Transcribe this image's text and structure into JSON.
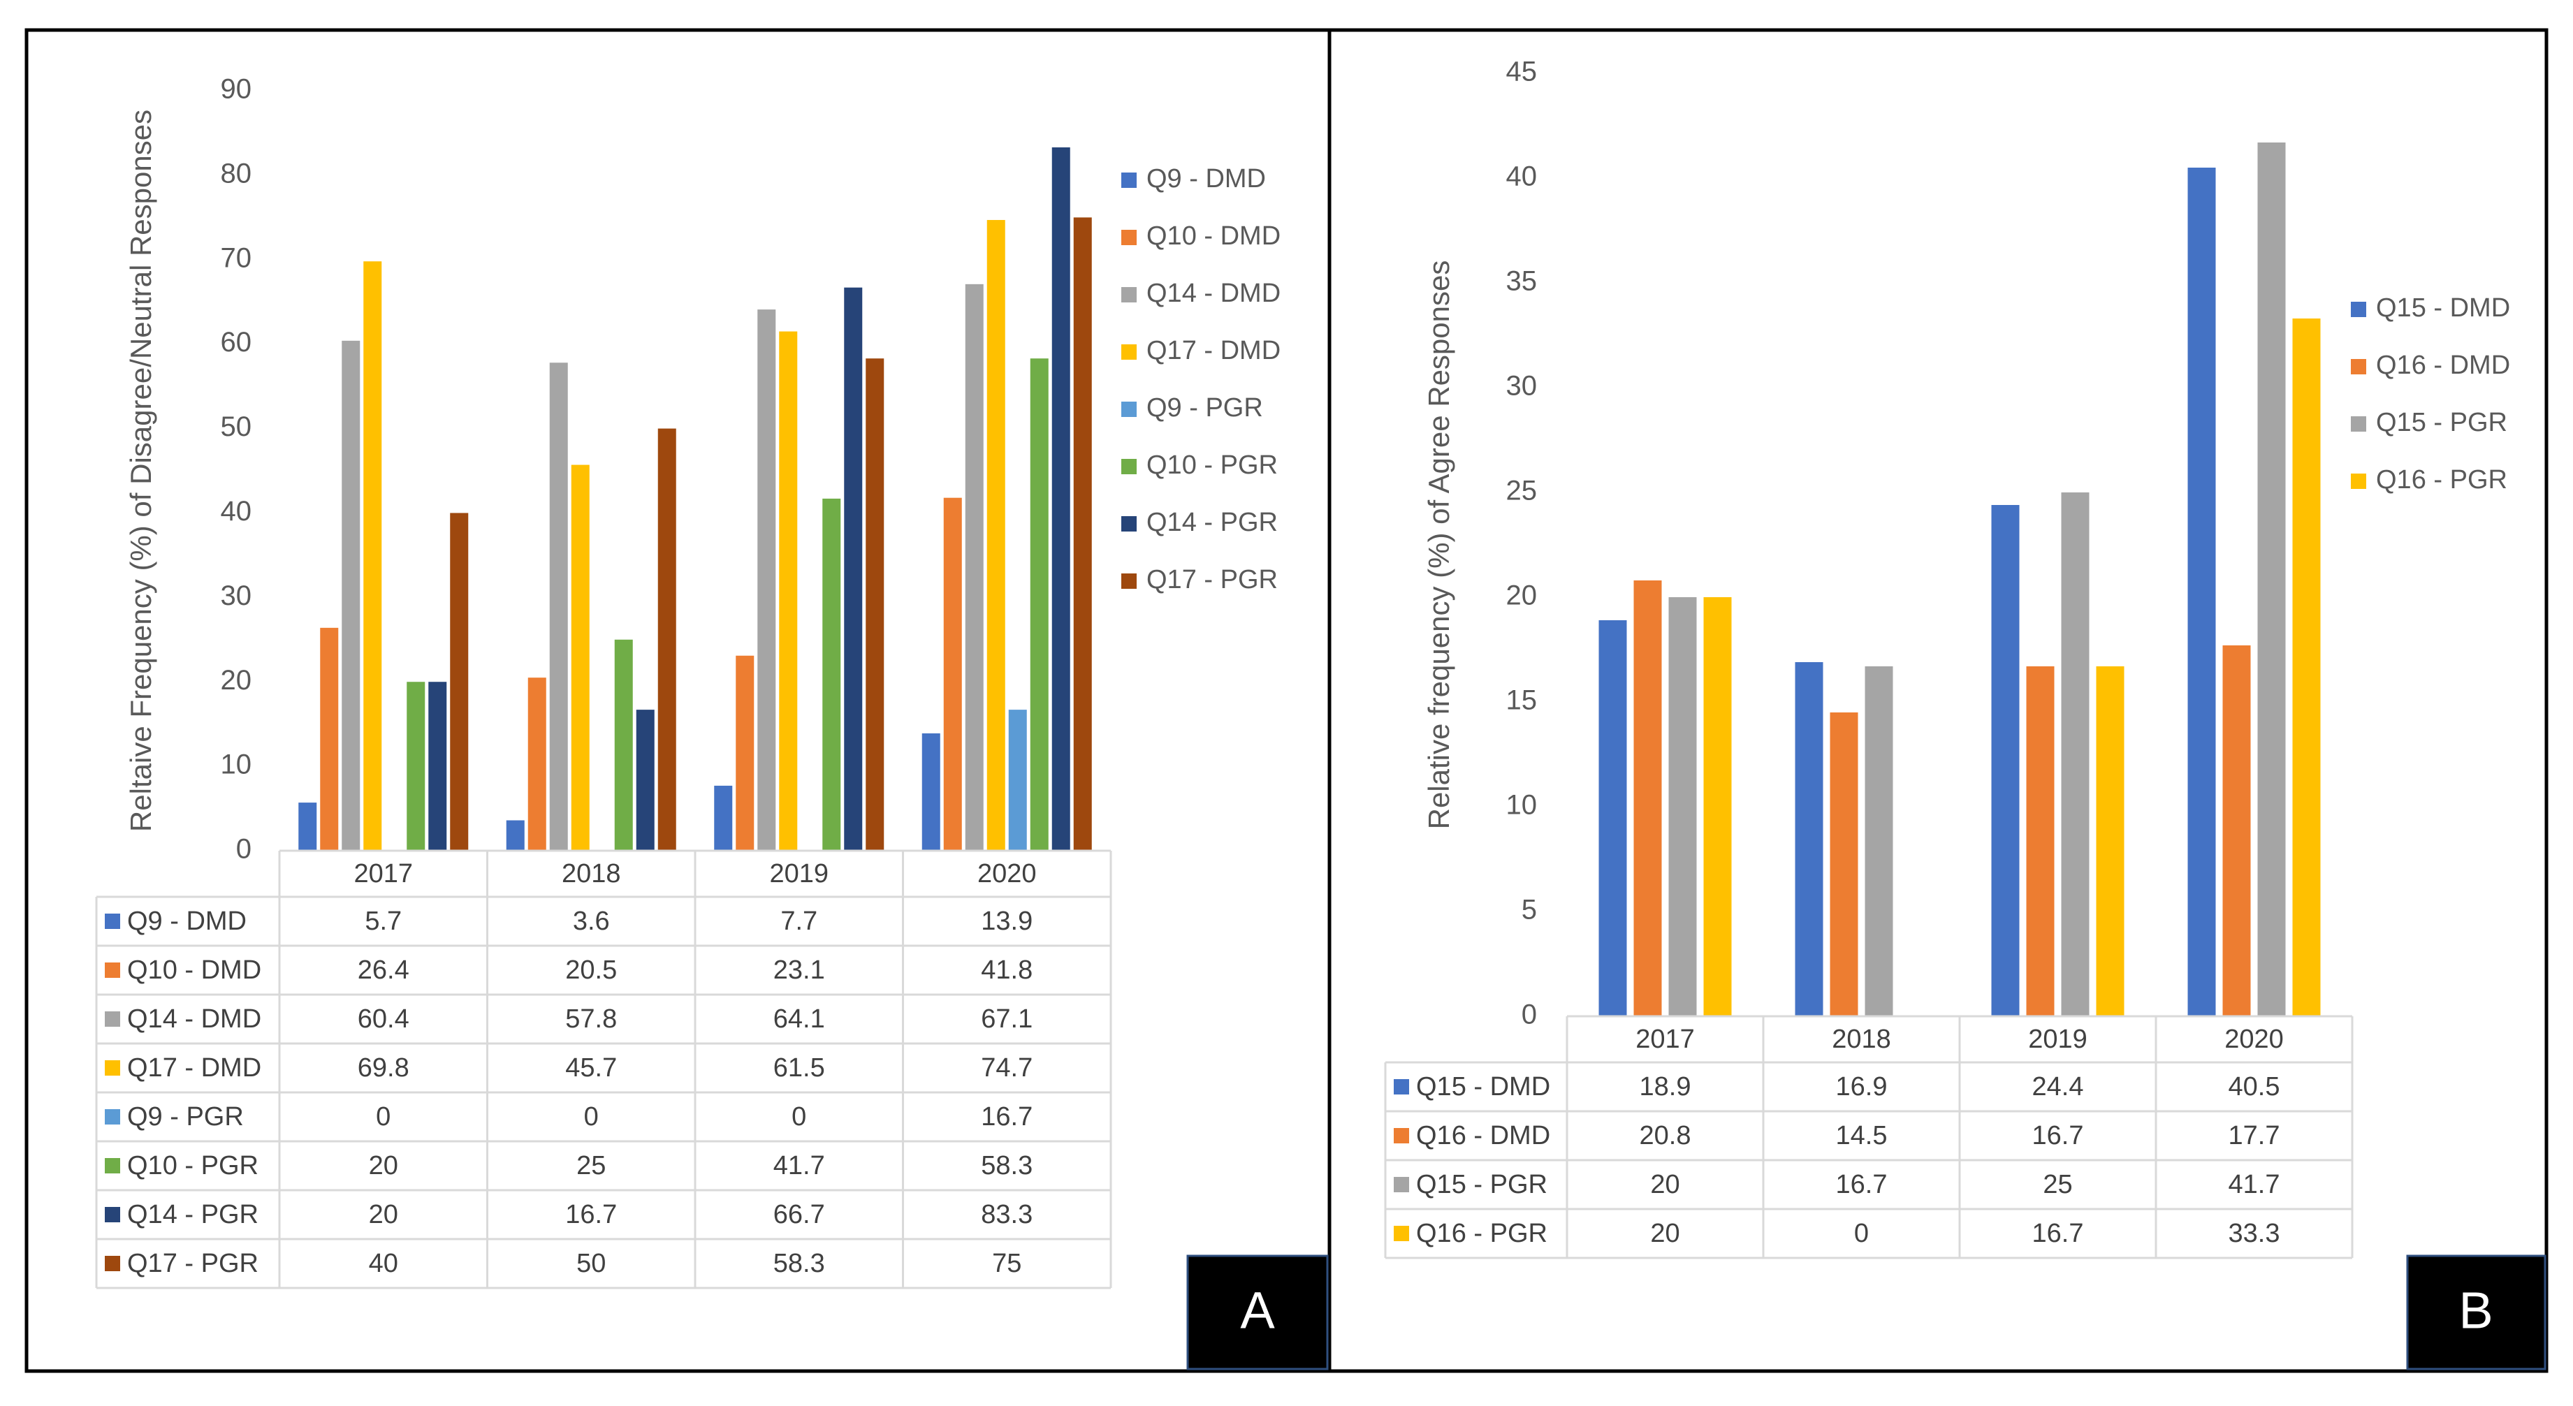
{
  "colors": {
    "blue": "#4472C4",
    "orange": "#ED7D31",
    "gray": "#A5A5A5",
    "gold": "#FFC000",
    "lightblue": "#5B9BD5",
    "green": "#70AD47",
    "navy": "#264478",
    "brown": "#9E480E"
  },
  "panels": {
    "a": {
      "label": "A"
    },
    "b": {
      "label": "B"
    }
  },
  "chart_data": [
    {
      "type": "bar",
      "categories": [
        "2017",
        "2018",
        "2019",
        "2020"
      ],
      "ylabel": "Reltaive Frequency (%) of Disagree/Neutral Responses",
      "ylim": [
        0,
        90
      ],
      "yticks": [
        0,
        10,
        20,
        30,
        40,
        50,
        60,
        70,
        80,
        90
      ],
      "legend_position": "right",
      "data_table": true,
      "series": [
        {
          "name": "Q9 - DMD",
          "color": "#4472C4",
          "values": [
            5.7,
            3.6,
            7.7,
            13.9
          ]
        },
        {
          "name": "Q10 - DMD",
          "color": "#ED7D31",
          "values": [
            26.4,
            20.5,
            23.1,
            41.8
          ]
        },
        {
          "name": "Q14 - DMD",
          "color": "#A5A5A5",
          "values": [
            60.4,
            57.8,
            64.1,
            67.1
          ]
        },
        {
          "name": "Q17 - DMD",
          "color": "#FFC000",
          "values": [
            69.8,
            45.7,
            61.5,
            74.7
          ]
        },
        {
          "name": "Q9 - PGR",
          "color": "#5B9BD5",
          "values": [
            0,
            0,
            0,
            16.7
          ]
        },
        {
          "name": "Q10 - PGR",
          "color": "#70AD47",
          "values": [
            20,
            25,
            41.7,
            58.3
          ]
        },
        {
          "name": "Q14 - PGR",
          "color": "#264478",
          "values": [
            20,
            16.7,
            66.7,
            83.3
          ]
        },
        {
          "name": "Q17 - PGR",
          "color": "#9E480E",
          "values": [
            40,
            50,
            58.3,
            75
          ]
        }
      ]
    },
    {
      "type": "bar",
      "categories": [
        "2017",
        "2018",
        "2019",
        "2020"
      ],
      "ylabel": "Relative frequency (%) of Agree Responses",
      "ylim": [
        0,
        45
      ],
      "yticks": [
        0,
        5,
        10,
        15,
        20,
        25,
        30,
        35,
        40,
        45
      ],
      "legend_position": "right",
      "data_table": true,
      "series": [
        {
          "name": "Q15 - DMD",
          "color": "#4472C4",
          "values": [
            18.9,
            16.9,
            24.4,
            40.5
          ]
        },
        {
          "name": "Q16 - DMD",
          "color": "#ED7D31",
          "values": [
            20.8,
            14.5,
            16.7,
            17.7
          ]
        },
        {
          "name": "Q15 - PGR",
          "color": "#A5A5A5",
          "values": [
            20,
            16.7,
            25,
            41.7
          ]
        },
        {
          "name": "Q16 - PGR",
          "color": "#FFC000",
          "values": [
            20,
            0,
            16.7,
            33.3
          ]
        }
      ]
    }
  ]
}
